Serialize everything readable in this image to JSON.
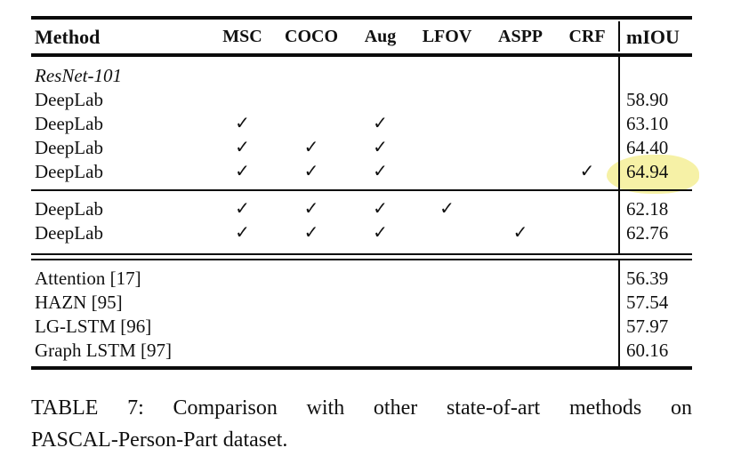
{
  "table": {
    "columns": [
      "Method",
      "MSC",
      "COCO",
      "Aug",
      "LFOV",
      "ASPP",
      "CRF",
      "mIOU"
    ],
    "check_glyph": "✓",
    "highlight_color": "#f6f1a6",
    "sections": [
      {
        "group_label": "ResNet-101",
        "rows": [
          {
            "method": "DeepLab",
            "checks": [],
            "miou": "58.90",
            "highlight": false
          },
          {
            "method": "DeepLab",
            "checks": [
              "MSC",
              "Aug"
            ],
            "miou": "63.10",
            "highlight": false
          },
          {
            "method": "DeepLab",
            "checks": [
              "MSC",
              "COCO",
              "Aug"
            ],
            "miou": "64.40",
            "highlight": false
          },
          {
            "method": "DeepLab",
            "checks": [
              "MSC",
              "COCO",
              "Aug",
              "CRF"
            ],
            "miou": "64.94",
            "highlight": true
          }
        ]
      },
      {
        "group_label": null,
        "rows": [
          {
            "method": "DeepLab",
            "checks": [
              "MSC",
              "COCO",
              "Aug",
              "LFOV"
            ],
            "miou": "62.18",
            "highlight": false
          },
          {
            "method": "DeepLab",
            "checks": [
              "MSC",
              "COCO",
              "Aug",
              "ASPP"
            ],
            "miou": "62.76",
            "highlight": false
          }
        ]
      },
      {
        "group_label": null,
        "rows": [
          {
            "method": "Attention [17]",
            "checks": [],
            "miou": "56.39",
            "highlight": false
          },
          {
            "method": "HAZN [95]",
            "checks": [],
            "miou": "57.54",
            "highlight": false
          },
          {
            "method": "LG-LSTM [96]",
            "checks": [],
            "miou": "57.97",
            "highlight": false
          },
          {
            "method": "Graph LSTM [97]",
            "checks": [],
            "miou": "60.16",
            "highlight": false
          }
        ]
      }
    ]
  },
  "caption": {
    "line1": "TABLE 7: Comparison with other state-of-art methods on",
    "line2": "PASCAL-Person-Part dataset."
  }
}
